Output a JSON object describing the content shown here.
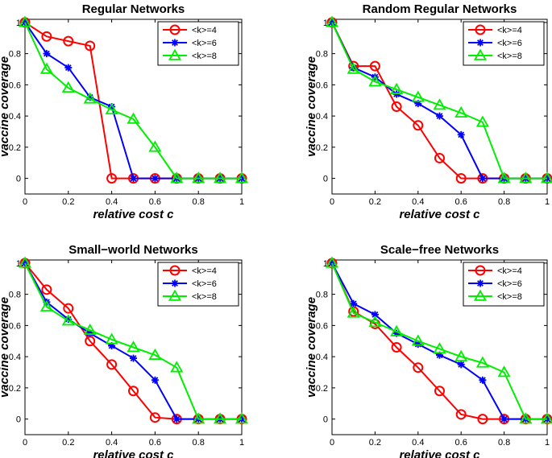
{
  "chart_data": [
    {
      "type": "line",
      "title": "Regular Networks",
      "xlabel": "relative cost c",
      "ylabel": "vaccine coverage",
      "xlim": [
        0,
        1
      ],
      "ylim": [
        -0.1,
        1.02
      ],
      "xticks": [
        "0",
        "0.2",
        "0.4",
        "0.6",
        "0.8",
        "1"
      ],
      "yticks": [
        "0",
        "0.2",
        "0.4",
        "0.6",
        "0.8",
        "1"
      ],
      "legend_position": "top-right",
      "x": [
        0,
        0.1,
        0.2,
        0.3,
        0.4,
        0.5,
        0.6,
        0.7,
        0.8,
        0.9,
        1.0
      ],
      "series": [
        {
          "name": "<k>=4",
          "color": "#ff0000",
          "marker": "circle",
          "values": [
            1.0,
            0.91,
            0.88,
            0.85,
            0.0,
            0.0,
            0.0,
            0.0,
            0.0,
            0.0,
            0.0
          ]
        },
        {
          "name": "<k>=6",
          "color": "#0000ff",
          "marker": "star",
          "values": [
            1.0,
            0.8,
            0.71,
            0.52,
            0.46,
            0.0,
            0.0,
            0.0,
            0.0,
            0.0,
            0.0
          ]
        },
        {
          "name": "<k>=8",
          "color": "#00ee00",
          "marker": "triangle",
          "values": [
            1.0,
            0.7,
            0.58,
            0.51,
            0.44,
            0.38,
            0.2,
            0.0,
            0.0,
            0.0,
            0.0
          ]
        }
      ]
    },
    {
      "type": "line",
      "title": "Random Regular Networks",
      "xlabel": "relative cost c",
      "ylabel": "vaccine coverage",
      "xlim": [
        0,
        1
      ],
      "ylim": [
        -0.1,
        1.02
      ],
      "xticks": [
        "0",
        "0.2",
        "0.4",
        "0.6",
        "0.8",
        "1"
      ],
      "yticks": [
        "0",
        "0.2",
        "0.4",
        "0.6",
        "0.8",
        "1"
      ],
      "legend_position": "top-right",
      "x": [
        0,
        0.1,
        0.2,
        0.3,
        0.4,
        0.5,
        0.6,
        0.7,
        0.8,
        0.9,
        1.0
      ],
      "series": [
        {
          "name": "<k>=4",
          "color": "#ff0000",
          "marker": "circle",
          "values": [
            1.0,
            0.72,
            0.72,
            0.46,
            0.34,
            0.13,
            0.0,
            0.0,
            0.0,
            0.0,
            0.0
          ]
        },
        {
          "name": "<k>=6",
          "color": "#0000ff",
          "marker": "star",
          "values": [
            1.0,
            0.71,
            0.65,
            0.54,
            0.48,
            0.4,
            0.28,
            0.0,
            0.0,
            0.0,
            0.0
          ]
        },
        {
          "name": "<k>=8",
          "color": "#00ee00",
          "marker": "triangle",
          "values": [
            1.0,
            0.7,
            0.62,
            0.57,
            0.52,
            0.47,
            0.42,
            0.36,
            0.0,
            0.0,
            0.0
          ]
        }
      ]
    },
    {
      "type": "line",
      "title": "Small−world Networks",
      "xlabel": "relative cost c",
      "ylabel": "vaccine coverage",
      "xlim": [
        0,
        1
      ],
      "ylim": [
        -0.1,
        1.02
      ],
      "xticks": [
        "0",
        "0.2",
        "0.4",
        "0.6",
        "0.8",
        "1"
      ],
      "yticks": [
        "0",
        "0.2",
        "0.4",
        "0.6",
        "0.8",
        "1"
      ],
      "legend_position": "top-right",
      "x": [
        0,
        0.1,
        0.2,
        0.3,
        0.4,
        0.5,
        0.6,
        0.7,
        0.8,
        0.9,
        1.0
      ],
      "series": [
        {
          "name": "<k>=4",
          "color": "#ff0000",
          "marker": "circle",
          "values": [
            1.0,
            0.83,
            0.71,
            0.5,
            0.35,
            0.18,
            0.01,
            0.0,
            0.0,
            0.0,
            0.0
          ]
        },
        {
          "name": "<k>=6",
          "color": "#0000ff",
          "marker": "star",
          "values": [
            1.0,
            0.75,
            0.64,
            0.55,
            0.47,
            0.39,
            0.25,
            0.0,
            0.0,
            0.0,
            0.0
          ]
        },
        {
          "name": "<k>=8",
          "color": "#00ee00",
          "marker": "triangle",
          "values": [
            1.0,
            0.72,
            0.63,
            0.57,
            0.51,
            0.46,
            0.41,
            0.33,
            0.0,
            0.0,
            0.0
          ]
        }
      ]
    },
    {
      "type": "line",
      "title": "Scale−free Networks",
      "xlabel": "relative cost c",
      "ylabel": "vaccine coverage",
      "xlim": [
        0,
        1
      ],
      "ylim": [
        -0.1,
        1.02
      ],
      "xticks": [
        "0",
        "0.2",
        "0.4",
        "0.6",
        "0.8",
        "1"
      ],
      "yticks": [
        "0",
        "0.2",
        "0.4",
        "0.6",
        "0.8",
        "1"
      ],
      "legend_position": "top-right",
      "x": [
        0,
        0.1,
        0.2,
        0.3,
        0.4,
        0.5,
        0.6,
        0.7,
        0.8,
        0.9,
        1.0
      ],
      "series": [
        {
          "name": "<k>=4",
          "color": "#ff0000",
          "marker": "circle",
          "values": [
            1.0,
            0.69,
            0.61,
            0.46,
            0.33,
            0.18,
            0.03,
            0.0,
            0.0,
            0.0,
            0.0
          ]
        },
        {
          "name": "<k>=6",
          "color": "#0000ff",
          "marker": "star",
          "values": [
            1.0,
            0.74,
            0.67,
            0.55,
            0.48,
            0.41,
            0.35,
            0.25,
            0.0,
            0.0,
            0.0
          ]
        },
        {
          "name": "<k>=8",
          "color": "#00ee00",
          "marker": "triangle",
          "values": [
            1.0,
            0.68,
            0.62,
            0.56,
            0.5,
            0.45,
            0.4,
            0.36,
            0.3,
            0.0,
            0.0
          ]
        }
      ]
    }
  ]
}
